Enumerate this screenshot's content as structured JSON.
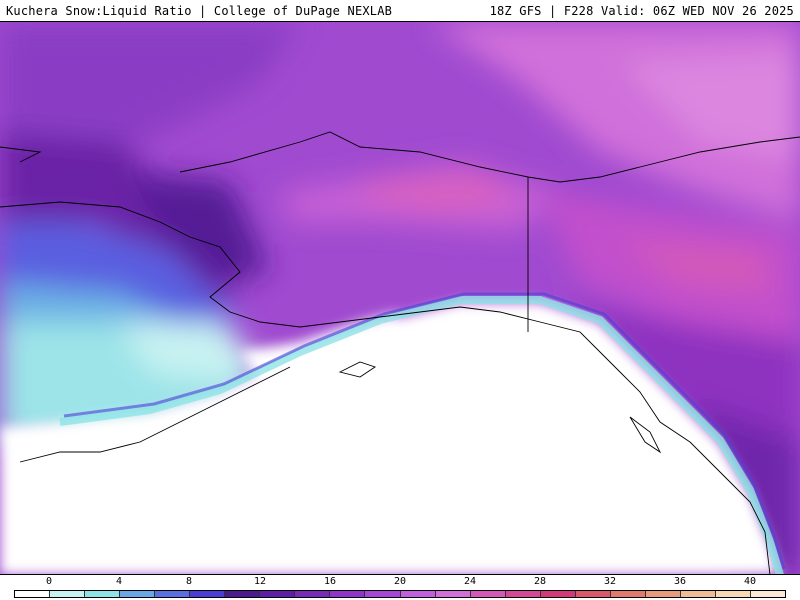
{
  "header": {
    "title": "Kuchera Snow:Liquid Ratio | College of DuPage NEXLAB",
    "run_info": "18Z GFS | F228 Valid: 06Z WED NOV 26 2025"
  },
  "legend": {
    "tick_labels": [
      "0",
      "4",
      "8",
      "12",
      "16",
      "20",
      "24",
      "28",
      "32",
      "36",
      "40"
    ],
    "colors": [
      "#ffffff",
      "#c8f2f2",
      "#8fe3e6",
      "#6aa6e6",
      "#5a6fe0",
      "#4a3ed6",
      "#4b1a8c",
      "#5e1fa6",
      "#7a2cb8",
      "#9135c8",
      "#a846d6",
      "#c060dd",
      "#d070d8",
      "#d458b8",
      "#d44898",
      "#d03a78",
      "#d85a6a",
      "#e07a6e",
      "#e89c7e",
      "#f0bc96",
      "#f6d7b6",
      "#fbe9d6"
    ]
  }
}
